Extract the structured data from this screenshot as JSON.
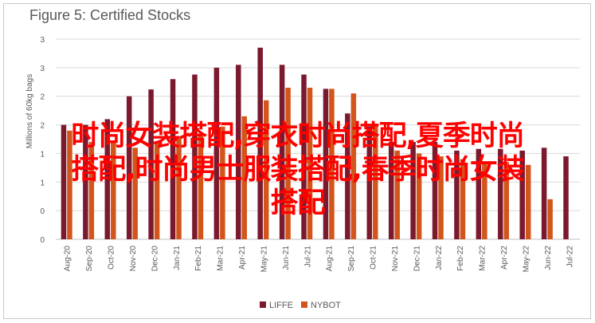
{
  "chart_data": {
    "type": "bar",
    "title": "Figure 5: Certified Stocks",
    "ylabel": "Millions of 60kg bags",
    "xlabel": "",
    "ylim": [
      0,
      3.5
    ],
    "yticks": [
      "0",
      "0",
      "1",
      "1",
      "2",
      "2",
      "3",
      "3"
    ],
    "ytick_values": [
      0,
      0.5,
      1,
      1.5,
      2,
      2.5,
      3,
      3.5
    ],
    "grid": true,
    "legend": "bottom",
    "categories": [
      "Aug-20",
      "Sep-20",
      "Oct-20",
      "Nov-20",
      "Dec-20",
      "Jan-21",
      "Feb-21",
      "Mar-21",
      "Apr-21",
      "May-21",
      "Jun-21",
      "Jul-21",
      "Aug-21",
      "Sep-21",
      "Oct-21",
      "Nov-21",
      "Dec-21",
      "Jan-22",
      "Feb-22",
      "Mar-22",
      "Apr-22",
      "May-22",
      "Jun-22",
      "Jul-22"
    ],
    "series": [
      {
        "name": "LIFFE",
        "color": "#7b1a2e",
        "values": [
          2.0,
          2.0,
          2.1,
          2.5,
          2.62,
          2.8,
          2.88,
          3.0,
          3.05,
          3.35,
          3.05,
          2.88,
          2.63,
          2.2,
          1.97,
          1.7,
          1.7,
          1.7,
          1.55,
          1.58,
          1.58,
          1.55,
          1.6,
          1.45
        ]
      },
      {
        "name": "NYBOT",
        "color": "#d2561b",
        "values": [
          1.9,
          1.7,
          1.7,
          1.6,
          1.7,
          1.8,
          1.85,
          1.97,
          2.15,
          2.43,
          2.65,
          2.65,
          2.63,
          2.55,
          2.02,
          1.55,
          1.5,
          1.45,
          1.4,
          1.32,
          1.35,
          1.3,
          0.7,
          null
        ]
      }
    ]
  },
  "overlay": {
    "line1": "时尚女装搭配,穿衣时尚搭配,夏季时尚",
    "line2": "搭配,时尚男士服装搭配,春季时尚女装",
    "line3": "搭配"
  }
}
